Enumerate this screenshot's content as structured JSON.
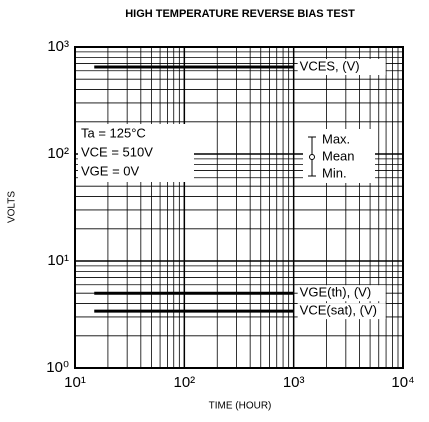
{
  "chart_data": {
    "type": "line",
    "title": "HIGH TEMPERATURE REVERSE BIAS TEST",
    "x_label": "TIME (HOUR)",
    "y_label": "VOLTS",
    "log_x": true,
    "log_y": true,
    "grid": true,
    "xlim": [
      10,
      10000
    ],
    "ylim": [
      1,
      1000
    ],
    "xticks": [
      {
        "value": 10,
        "label": "10¹"
      },
      {
        "value": 100,
        "label": "10²"
      },
      {
        "value": 1000,
        "label": "10³"
      },
      {
        "value": 10000,
        "label": "10⁴"
      }
    ],
    "yticks": [
      {
        "value": 1,
        "label": "10⁰"
      },
      {
        "value": 10,
        "label": "10¹"
      },
      {
        "value": 100,
        "label": "10²"
      },
      {
        "value": 1000,
        "label": "10³"
      }
    ],
    "series": [
      {
        "name": "VCES, (V)",
        "color": "#000000",
        "x": [
          15,
          1000
        ],
        "values": [
          650,
          650
        ]
      },
      {
        "name": "VGE(th), (V)",
        "color": "#000000",
        "x": [
          15,
          1000
        ],
        "values": [
          5,
          5
        ]
      },
      {
        "name": "VCE(sat), (V)",
        "color": "#000000",
        "x": [
          15,
          1000
        ],
        "values": [
          3.4,
          3.4
        ]
      }
    ],
    "annotations": [
      "Ta = 125°C",
      "VCE = 510V",
      "VGE = 0V"
    ],
    "range_legend": [
      "Max.",
      "Mean",
      "Min."
    ]
  }
}
